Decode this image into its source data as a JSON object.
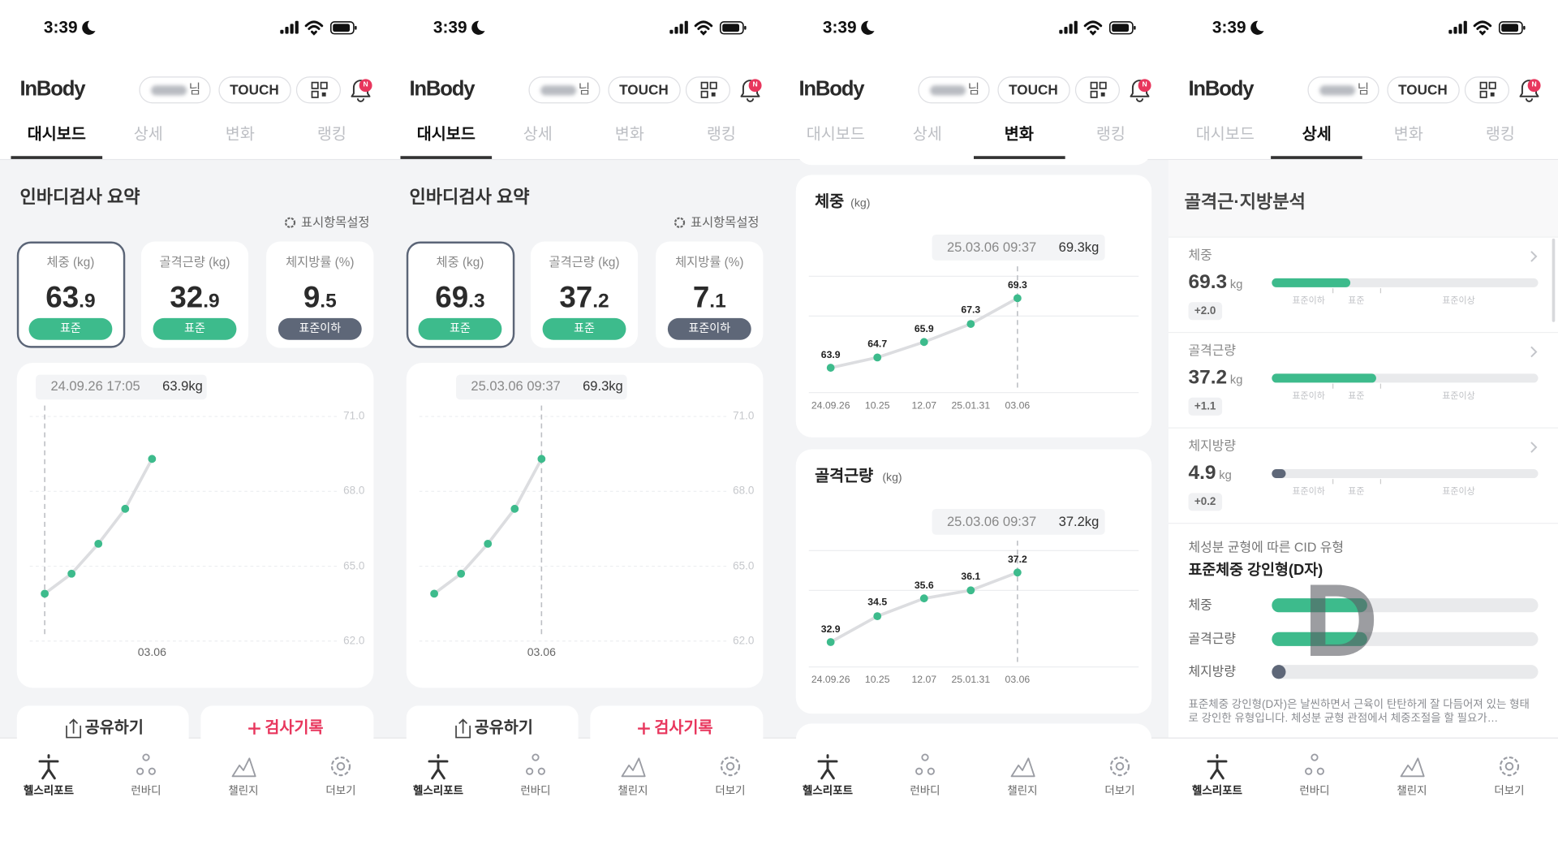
{
  "status_bar": {
    "time": "3:39"
  },
  "header": {
    "logo": "InBody",
    "user_suffix": "님",
    "touch_button": "TOUCH",
    "notification_badge": "N"
  },
  "tabs": [
    "대시보드",
    "상세",
    "변화",
    "랭킹"
  ],
  "bottom_nav": [
    "헬스리포트",
    "런바디",
    "챌린지",
    "더보기"
  ],
  "screens": [
    {
      "active_tab": 0,
      "section_title": "인바디검사 요약",
      "settings_link": "표시항목설정",
      "cards": [
        {
          "label": "체중 (kg)",
          "value": 63.9,
          "status": "표준",
          "status_color": "#3dbb8c"
        },
        {
          "label": "골격근량 (kg)",
          "value": 32.9,
          "status": "표준",
          "status_color": "#3dbb8c"
        },
        {
          "label": "체지방률 (%)",
          "value": 9.5,
          "status": "표준이하",
          "status_color": "#5e6778"
        }
      ],
      "chart": {
        "type": "line",
        "tooltip": {
          "date": "24.09.26 17:05",
          "value": "63.9kg"
        },
        "highlight_index": 0,
        "categories": [
          null,
          null,
          null,
          null,
          "03.06"
        ],
        "values": [
          63.9,
          64.7,
          65.9,
          67.3,
          69.3
        ],
        "color": "#3dbb8c",
        "ylim": [
          62,
          71
        ],
        "yticks": [
          {
            "value": 62,
            "label": "62.0"
          },
          {
            "value": 65,
            "label": "65.0"
          },
          {
            "value": 68,
            "label": "68.0"
          },
          {
            "value": 71,
            "label": "71.0"
          }
        ]
      },
      "buttons": [
        "공유하기",
        "검사기록"
      ]
    },
    {
      "active_tab": 0,
      "section_title": "인바디검사 요약",
      "settings_link": "표시항목설정",
      "cards": [
        {
          "label": "체중 (kg)",
          "value": 69.3,
          "status": "표준",
          "status_color": "#3dbb8c"
        },
        {
          "label": "골격근량 (kg)",
          "value": 37.2,
          "status": "표준",
          "status_color": "#3dbb8c"
        },
        {
          "label": "체지방률 (%)",
          "value": 7.1,
          "status": "표준이하",
          "status_color": "#5e6778"
        }
      ],
      "chart": {
        "type": "line",
        "tooltip": {
          "date": "25.03.06 09:37",
          "value": "69.3kg"
        },
        "highlight_index": 4,
        "categories": [
          null,
          null,
          null,
          null,
          "03.06"
        ],
        "values": [
          63.9,
          64.7,
          65.9,
          67.3,
          69.3
        ],
        "color": "#3dbb8c",
        "ylim": [
          62,
          71
        ],
        "yticks": [
          {
            "value": 62,
            "label": "62.0"
          },
          {
            "value": 65,
            "label": "65.0"
          },
          {
            "value": 68,
            "label": "68.0"
          },
          {
            "value": 71,
            "label": "71.0"
          }
        ]
      },
      "buttons": [
        "공유하기",
        "검사기록"
      ]
    },
    {
      "active_tab": 2,
      "charts": [
        {
          "type": "line",
          "title": "체중",
          "unit": "(kg)",
          "tooltip": {
            "date": "25.03.06 09:37",
            "value": "69.3kg"
          },
          "highlight_index": 4,
          "categories": [
            "24.09.26",
            "10.25",
            "12.07",
            "25.01.31",
            "03.06"
          ],
          "values": [
            63.9,
            64.7,
            65.9,
            67.3,
            69.3
          ],
          "color": "#3dbb8c"
        },
        {
          "type": "line",
          "title": "골격근량",
          "unit": "(kg)",
          "tooltip": {
            "date": "25.03.06 09:37",
            "value": "37.2kg"
          },
          "highlight_index": 4,
          "categories": [
            "24.09.26",
            "10.25",
            "12.07",
            "25.01.31",
            "03.06"
          ],
          "values": [
            32.9,
            34.5,
            35.6,
            36.1,
            37.2
          ],
          "color": "#3dbb8c"
        }
      ]
    },
    {
      "active_tab": 1,
      "section_title": "골격근·지방분석",
      "rows": [
        {
          "label": "체중",
          "value": 69.3,
          "unit": "kg",
          "change": "+2.0",
          "color": "#3dbb8c"
        },
        {
          "label": "골격근량",
          "value": 37.2,
          "unit": "kg",
          "change": "+1.1",
          "color": "#3dbb8c"
        },
        {
          "label": "체지방량",
          "value": 4.9,
          "unit": "kg",
          "change": "+0.2",
          "color": "#5e6778"
        }
      ],
      "scale_labels": [
        "표준이하",
        "표준",
        "표준이상"
      ],
      "cid": {
        "caption": "체성분 균형에 따른 CID 유형",
        "type_name": "표준체중 강인형(D자)",
        "letter": "D",
        "bars": [
          "체중",
          "골격근량",
          "체지방량"
        ],
        "description": "표준체중 강인형(D자)은 날씬하면서 근육이 탄탄하게 잘 다듬어져 있는 형태로 강인한 유형입니다. 체성분 균형 관점에서 체중조절을 할 필요가…"
      }
    }
  ]
}
